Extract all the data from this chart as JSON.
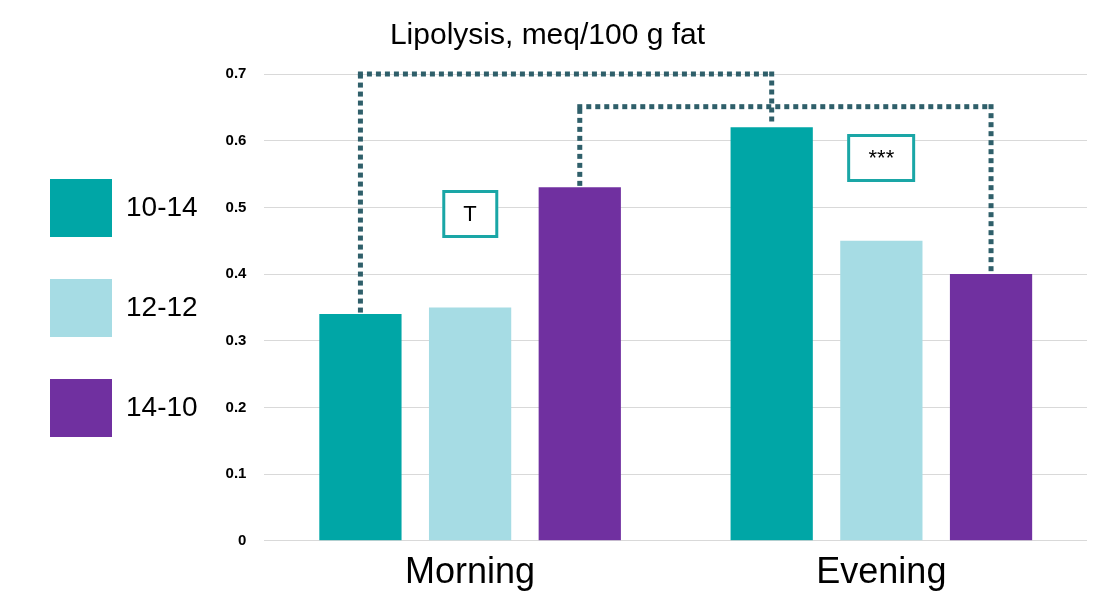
{
  "chart_data": {
    "type": "bar",
    "title": "Lipolysis, meq/100 g fat",
    "categories": [
      "Morning",
      "Evening"
    ],
    "series": [
      {
        "name": "10-14",
        "color": "#00a6a6",
        "values": [
          0.34,
          0.62
        ]
      },
      {
        "name": "12-12",
        "color": "#a6dce4",
        "values": [
          0.35,
          0.45
        ]
      },
      {
        "name": "14-10",
        "color": "#7030a0",
        "values": [
          0.53,
          0.4
        ]
      }
    ],
    "ylim": [
      0,
      0.7
    ],
    "yticks": [
      0,
      0.1,
      0.2,
      0.3,
      0.4,
      0.5,
      0.6,
      0.7
    ],
    "grid": "y",
    "legend": "left",
    "annotations": [
      "T",
      "***"
    ]
  }
}
